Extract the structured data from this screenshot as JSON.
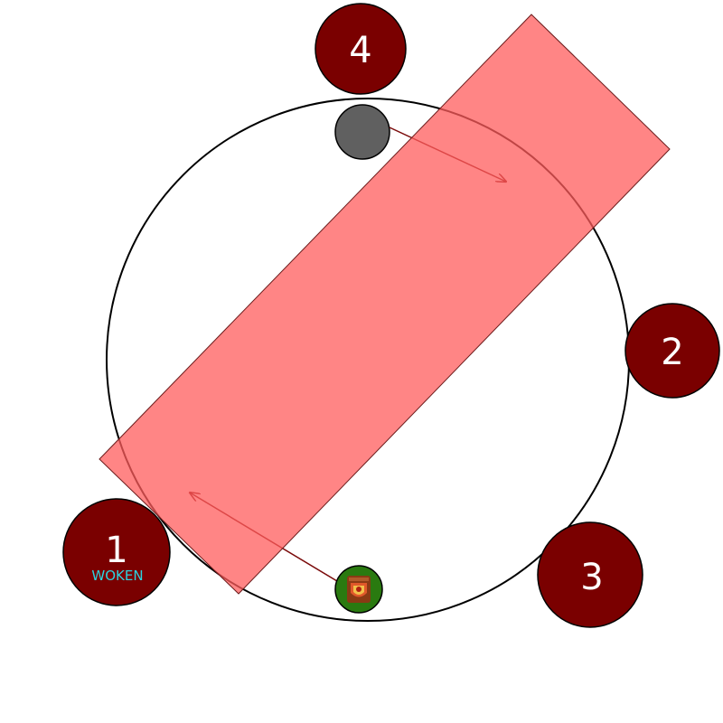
{
  "markers": [
    {
      "id": "marker-1",
      "label": "1",
      "status": "WOKEN"
    },
    {
      "id": "marker-2",
      "label": "2"
    },
    {
      "id": "marker-3",
      "label": "3"
    },
    {
      "id": "marker-4",
      "label": "4"
    }
  ],
  "colors": {
    "marker_fill": "#7a0000",
    "marker_text": "#ffffff",
    "status_text": "#2ad4e0",
    "danger_zone": "#ff5c5c",
    "danger_zone_opacity": 0.75,
    "arena_stroke": "#000000",
    "arrow": "#7a0a0a",
    "enemy_token": "#606060",
    "player_token": "#2a7a10"
  },
  "icons": {
    "enemy": "grey-enemy-token",
    "player": "shield-job-icon"
  }
}
